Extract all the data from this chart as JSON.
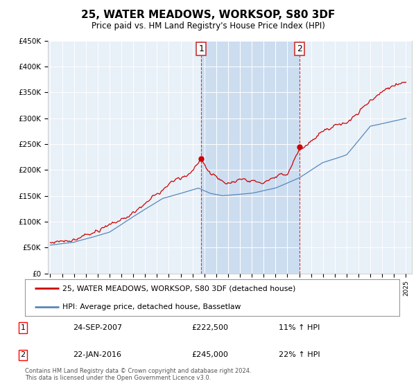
{
  "title": "25, WATER MEADOWS, WORKSOP, S80 3DF",
  "subtitle": "Price paid vs. HM Land Registry's House Price Index (HPI)",
  "ylim": [
    0,
    450000
  ],
  "xlim_start": 1995,
  "xlim_end": 2025.5,
  "red_line_color": "#cc0000",
  "blue_line_color": "#5588bb",
  "marker1_date": 2007.73,
  "marker1_value": 222500,
  "marker2_date": 2016.05,
  "marker2_value": 245000,
  "legend_line1": "25, WATER MEADOWS, WORKSOP, S80 3DF (detached house)",
  "legend_line2": "HPI: Average price, detached house, Bassetlaw",
  "footer": "Contains HM Land Registry data © Crown copyright and database right 2024.\nThis data is licensed under the Open Government Licence v3.0.",
  "plot_bg_color": "#e8f0f8",
  "shade_color": "#ccddf0",
  "grid_color": "#cccccc"
}
